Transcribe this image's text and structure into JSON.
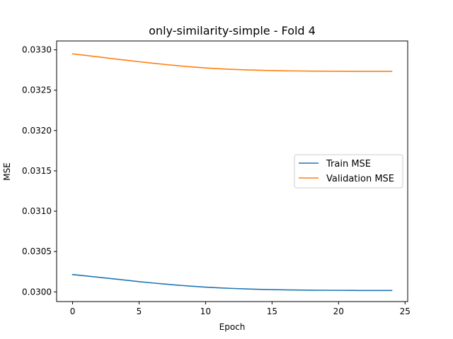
{
  "chart_data": {
    "type": "line",
    "title": "only-similarity-simple - Fold 4",
    "xlabel": "Epoch",
    "ylabel": "MSE",
    "xlim": [
      -1.2,
      25.2
    ],
    "ylim": [
      0.02988,
      0.03311
    ],
    "xticks": [
      0,
      5,
      10,
      15,
      20,
      25
    ],
    "yticks": [
      0.03,
      0.0305,
      0.031,
      0.0315,
      0.032,
      0.0325,
      0.033
    ],
    "ytick_labels": [
      "0.0300",
      "0.0305",
      "0.0310",
      "0.0315",
      "0.0320",
      "0.0325",
      "0.0330"
    ],
    "grid": false,
    "legend_position": "center-right",
    "x": [
      0,
      1,
      2,
      3,
      4,
      5,
      6,
      7,
      8,
      9,
      10,
      11,
      12,
      13,
      14,
      15,
      16,
      17,
      18,
      19,
      20,
      21,
      22,
      23,
      24
    ],
    "series": [
      {
        "name": "Train MSE",
        "color": "#1f77b4",
        "values": [
          0.030215,
          0.030198,
          0.03018,
          0.030163,
          0.030145,
          0.030127,
          0.030111,
          0.030096,
          0.030082,
          0.03007,
          0.030059,
          0.03005,
          0.030043,
          0.030037,
          0.030032,
          0.030028,
          0.030025,
          0.030023,
          0.030021,
          0.03002,
          0.030019,
          0.030018,
          0.030017,
          0.030017,
          0.030017
        ]
      },
      {
        "name": "Validation MSE",
        "color": "#ff7f0e",
        "values": [
          0.03295,
          0.032931,
          0.032911,
          0.032891,
          0.032872,
          0.032853,
          0.032835,
          0.032818,
          0.032802,
          0.032788,
          0.032776,
          0.032766,
          0.032758,
          0.032752,
          0.032747,
          0.032743,
          0.03274,
          0.032738,
          0.032736,
          0.032735,
          0.032734,
          0.032733,
          0.032733,
          0.032733,
          0.032733
        ]
      }
    ]
  }
}
